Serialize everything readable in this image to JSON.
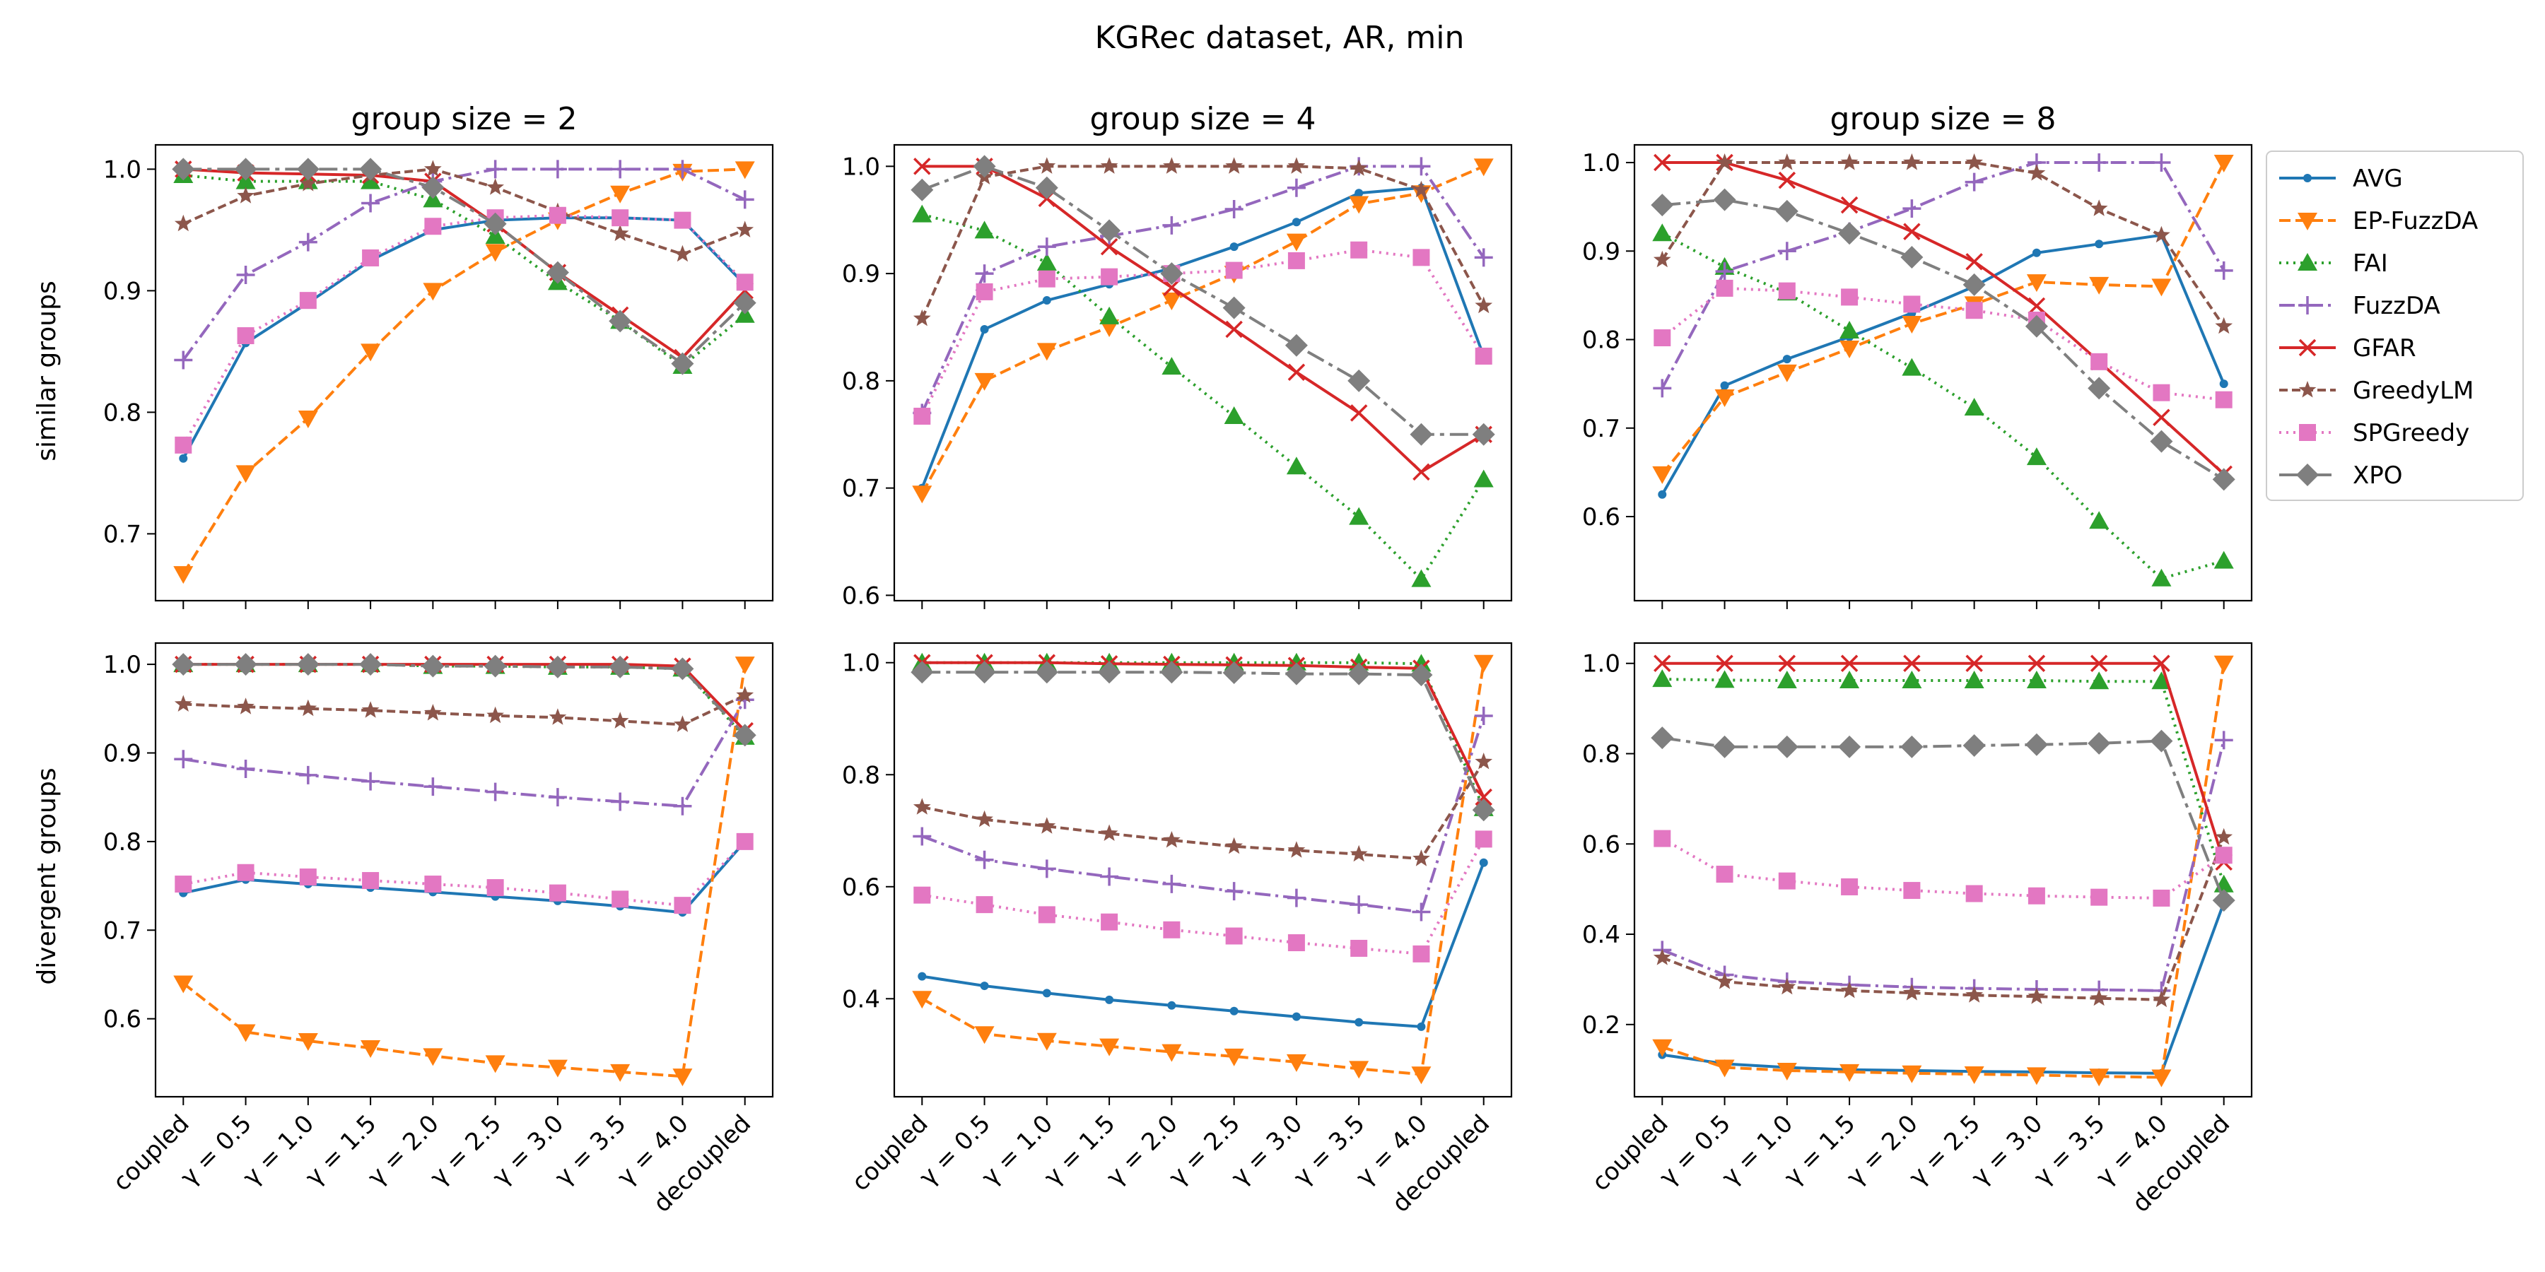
{
  "figure_title": "KGRec dataset, AR, min",
  "row_labels": [
    "similar groups",
    "divergent groups"
  ],
  "colors": {
    "AVG": "#1f77b4",
    "EP-FuzzDA": "#ff7f0e",
    "FAI": "#2ca02c",
    "FuzzDA": "#9467bd",
    "GFAR": "#d62728",
    "GreedyLM": "#8c564b",
    "SPGreedy": "#e377c2",
    "XPO": "#7f7f7f"
  },
  "legend": [
    "AVG",
    "EP-FuzzDA",
    "FAI",
    "FuzzDA",
    "GFAR",
    "GreedyLM",
    "SPGreedy",
    "XPO"
  ],
  "chart_data": [
    {
      "type": "line",
      "title": "group size = 2",
      "ylabel": "similar groups",
      "categories": [
        "coupled",
        "γ = 0.5",
        "γ = 1.0",
        "γ = 1.5",
        "γ = 2.0",
        "γ = 2.5",
        "γ = 3.0",
        "γ = 3.5",
        "γ = 4.0",
        "decoupled"
      ],
      "ylim": [
        0.645,
        1.02
      ],
      "yticks": [
        0.7,
        0.8,
        0.9,
        1.0
      ],
      "ytick_labels": [
        "0.7",
        "0.8",
        "0.9",
        "1.0"
      ],
      "series": [
        {
          "name": "AVG",
          "values": [
            0.762,
            0.857,
            0.89,
            0.925,
            0.95,
            0.958,
            0.96,
            0.96,
            0.958,
            0.905
          ]
        },
        {
          "name": "EP-FuzzDA",
          "values": [
            0.667,
            0.75,
            0.795,
            0.85,
            0.9,
            0.932,
            0.958,
            0.98,
            0.998,
            1.0
          ]
        },
        {
          "name": "FAI",
          "values": [
            0.995,
            0.99,
            0.99,
            0.99,
            0.975,
            0.945,
            0.907,
            0.875,
            0.838,
            0.88
          ]
        },
        {
          "name": "FuzzDA",
          "values": [
            0.843,
            0.913,
            0.94,
            0.972,
            0.99,
            1.0,
            1.0,
            1.0,
            1.0,
            0.975
          ]
        },
        {
          "name": "GFAR",
          "values": [
            1.0,
            0.997,
            0.996,
            0.995,
            0.99,
            0.955,
            0.915,
            0.88,
            0.845,
            0.9
          ]
        },
        {
          "name": "GreedyLM",
          "values": [
            0.955,
            0.978,
            0.988,
            0.995,
            1.0,
            0.985,
            0.965,
            0.947,
            0.93,
            0.95
          ]
        },
        {
          "name": "SPGreedy",
          "values": [
            0.773,
            0.863,
            0.892,
            0.927,
            0.953,
            0.96,
            0.962,
            0.96,
            0.958,
            0.907
          ]
        },
        {
          "name": "XPO",
          "values": [
            1.0,
            1.0,
            1.0,
            1.0,
            0.985,
            0.955,
            0.915,
            0.875,
            0.84,
            0.89
          ]
        }
      ]
    },
    {
      "type": "line",
      "title": "group size = 4",
      "ylabel": "",
      "categories": [
        "coupled",
        "γ = 0.5",
        "γ = 1.0",
        "γ = 1.5",
        "γ = 2.0",
        "γ = 2.5",
        "γ = 3.0",
        "γ = 3.5",
        "γ = 4.0",
        "decoupled"
      ],
      "ylim": [
        0.595,
        1.02
      ],
      "yticks": [
        0.6,
        0.7,
        0.8,
        0.9,
        1.0
      ],
      "ytick_labels": [
        "0.6",
        "0.7",
        "0.8",
        "0.9",
        "1.0"
      ],
      "series": [
        {
          "name": "AVG",
          "values": [
            0.7,
            0.848,
            0.875,
            0.89,
            0.905,
            0.925,
            0.948,
            0.975,
            0.98,
            0.823
          ]
        },
        {
          "name": "EP-FuzzDA",
          "values": [
            0.695,
            0.8,
            0.828,
            0.85,
            0.875,
            0.9,
            0.93,
            0.965,
            0.975,
            1.0
          ]
        },
        {
          "name": "FAI",
          "values": [
            0.955,
            0.94,
            0.91,
            0.86,
            0.813,
            0.767,
            0.72,
            0.673,
            0.615,
            0.708
          ]
        },
        {
          "name": "FuzzDA",
          "values": [
            0.77,
            0.9,
            0.925,
            0.935,
            0.945,
            0.96,
            0.98,
            1.0,
            1.0,
            0.915
          ]
        },
        {
          "name": "GFAR",
          "values": [
            1.0,
            1.0,
            0.97,
            0.925,
            0.887,
            0.848,
            0.808,
            0.77,
            0.715,
            0.75
          ]
        },
        {
          "name": "GreedyLM",
          "values": [
            0.858,
            0.99,
            1.0,
            1.0,
            1.0,
            1.0,
            1.0,
            0.998,
            0.978,
            0.87
          ]
        },
        {
          "name": "SPGreedy",
          "values": [
            0.767,
            0.883,
            0.895,
            0.897,
            0.9,
            0.903,
            0.912,
            0.922,
            0.915,
            0.823
          ]
        },
        {
          "name": "XPO",
          "values": [
            0.978,
            1.0,
            0.98,
            0.94,
            0.9,
            0.868,
            0.833,
            0.8,
            0.75,
            0.75
          ]
        }
      ]
    },
    {
      "type": "line",
      "title": "group size = 8",
      "ylabel": "",
      "categories": [
        "coupled",
        "γ = 0.5",
        "γ = 1.0",
        "γ = 1.5",
        "γ = 2.0",
        "γ = 2.5",
        "γ = 3.0",
        "γ = 3.5",
        "γ = 4.0",
        "decoupled"
      ],
      "ylim": [
        0.505,
        1.02
      ],
      "yticks": [
        0.6,
        0.7,
        0.8,
        0.9,
        1.0
      ],
      "ytick_labels": [
        "0.6",
        "0.7",
        "0.8",
        "0.9",
        "1.0"
      ],
      "series": [
        {
          "name": "AVG",
          "values": [
            0.625,
            0.748,
            0.778,
            0.803,
            0.83,
            0.86,
            0.898,
            0.908,
            0.918,
            0.75
          ]
        },
        {
          "name": "EP-FuzzDA",
          "values": [
            0.648,
            0.735,
            0.763,
            0.79,
            0.818,
            0.84,
            0.865,
            0.862,
            0.86,
            1.0
          ]
        },
        {
          "name": "FAI",
          "values": [
            0.92,
            0.882,
            0.853,
            0.81,
            0.768,
            0.723,
            0.667,
            0.595,
            0.53,
            0.55
          ]
        },
        {
          "name": "FuzzDA",
          "values": [
            0.745,
            0.877,
            0.9,
            0.922,
            0.948,
            0.978,
            1.0,
            1.0,
            1.0,
            0.878
          ]
        },
        {
          "name": "GFAR",
          "values": [
            1.0,
            1.0,
            0.98,
            0.952,
            0.922,
            0.888,
            0.838,
            0.775,
            0.712,
            0.648
          ]
        },
        {
          "name": "GreedyLM",
          "values": [
            0.89,
            1.0,
            1.0,
            1.0,
            1.0,
            1.0,
            0.988,
            0.948,
            0.918,
            0.815
          ]
        },
        {
          "name": "SPGreedy",
          "values": [
            0.802,
            0.858,
            0.855,
            0.848,
            0.84,
            0.833,
            0.822,
            0.775,
            0.74,
            0.732
          ]
        },
        {
          "name": "XPO",
          "values": [
            0.952,
            0.958,
            0.945,
            0.92,
            0.893,
            0.862,
            0.815,
            0.745,
            0.685,
            0.642
          ]
        }
      ]
    },
    {
      "type": "line",
      "title": "",
      "ylabel": "divergent groups",
      "categories": [
        "coupled",
        "γ = 0.5",
        "γ = 1.0",
        "γ = 1.5",
        "γ = 2.0",
        "γ = 2.5",
        "γ = 3.0",
        "γ = 3.5",
        "γ = 4.0",
        "decoupled"
      ],
      "ylim": [
        0.512,
        1.024
      ],
      "yticks": [
        0.6,
        0.7,
        0.8,
        0.9,
        1.0
      ],
      "ytick_labels": [
        "0.6",
        "0.7",
        "0.8",
        "0.9",
        "1.0"
      ],
      "series": [
        {
          "name": "AVG",
          "values": [
            0.742,
            0.757,
            0.752,
            0.748,
            0.743,
            0.738,
            0.733,
            0.727,
            0.72,
            0.8
          ]
        },
        {
          "name": "EP-FuzzDA",
          "values": [
            0.64,
            0.585,
            0.575,
            0.567,
            0.558,
            0.55,
            0.545,
            0.54,
            0.535,
            1.0
          ]
        },
        {
          "name": "FAI",
          "values": [
            1.0,
            1.0,
            1.0,
            1.0,
            0.998,
            0.998,
            0.997,
            0.997,
            0.995,
            0.918
          ]
        },
        {
          "name": "FuzzDA",
          "values": [
            0.893,
            0.882,
            0.875,
            0.868,
            0.862,
            0.856,
            0.85,
            0.845,
            0.84,
            0.96
          ]
        },
        {
          "name": "GFAR",
          "values": [
            1.0,
            1.0,
            1.0,
            1.0,
            1.0,
            1.0,
            1.0,
            1.0,
            0.998,
            0.925
          ]
        },
        {
          "name": "GreedyLM",
          "values": [
            0.955,
            0.952,
            0.95,
            0.948,
            0.945,
            0.942,
            0.94,
            0.936,
            0.932,
            0.965
          ]
        },
        {
          "name": "SPGreedy",
          "values": [
            0.752,
            0.765,
            0.76,
            0.756,
            0.752,
            0.748,
            0.742,
            0.735,
            0.728,
            0.8
          ]
        },
        {
          "name": "XPO",
          "values": [
            1.0,
            1.0,
            1.0,
            1.0,
            0.998,
            0.998,
            0.997,
            0.997,
            0.995,
            0.92
          ]
        }
      ]
    },
    {
      "type": "line",
      "title": "",
      "ylabel": "",
      "categories": [
        "coupled",
        "γ = 0.5",
        "γ = 1.0",
        "γ = 1.5",
        "γ = 2.0",
        "γ = 2.5",
        "γ = 3.0",
        "γ = 3.5",
        "γ = 4.0",
        "decoupled"
      ],
      "ylim": [
        0.225,
        1.035
      ],
      "yticks": [
        0.4,
        0.6,
        0.8,
        1.0
      ],
      "ytick_labels": [
        "0.4",
        "0.6",
        "0.8",
        "1.0"
      ],
      "series": [
        {
          "name": "AVG",
          "values": [
            0.44,
            0.423,
            0.41,
            0.398,
            0.388,
            0.378,
            0.368,
            0.358,
            0.35,
            0.643
          ]
        },
        {
          "name": "EP-FuzzDA",
          "values": [
            0.4,
            0.337,
            0.325,
            0.315,
            0.305,
            0.297,
            0.287,
            0.275,
            0.265,
            1.0
          ]
        },
        {
          "name": "FAI",
          "values": [
            1.0,
            1.0,
            1.0,
            1.0,
            1.0,
            1.0,
            1.0,
            1.0,
            0.998,
            0.74
          ]
        },
        {
          "name": "FuzzDA",
          "values": [
            0.69,
            0.648,
            0.632,
            0.618,
            0.605,
            0.592,
            0.58,
            0.568,
            0.555,
            0.905
          ]
        },
        {
          "name": "GFAR",
          "values": [
            1.0,
            1.0,
            1.0,
            0.998,
            0.997,
            0.996,
            0.995,
            0.992,
            0.99,
            0.76
          ]
        },
        {
          "name": "GreedyLM",
          "values": [
            0.742,
            0.72,
            0.708,
            0.695,
            0.683,
            0.672,
            0.665,
            0.658,
            0.65,
            0.823
          ]
        },
        {
          "name": "SPGreedy",
          "values": [
            0.585,
            0.568,
            0.55,
            0.537,
            0.523,
            0.512,
            0.5,
            0.49,
            0.48,
            0.685
          ]
        },
        {
          "name": "XPO",
          "values": [
            0.983,
            0.983,
            0.983,
            0.983,
            0.983,
            0.982,
            0.98,
            0.98,
            0.978,
            0.737
          ]
        }
      ]
    },
    {
      "type": "line",
      "title": "",
      "ylabel": "",
      "categories": [
        "coupled",
        "γ = 0.5",
        "γ = 1.0",
        "γ = 1.5",
        "γ = 2.0",
        "γ = 2.5",
        "γ = 3.0",
        "γ = 3.5",
        "γ = 4.0",
        "decoupled"
      ],
      "ylim": [
        0.04,
        1.045
      ],
      "yticks": [
        0.2,
        0.4,
        0.6,
        0.8,
        1.0
      ],
      "ytick_labels": [
        "0.2",
        "0.4",
        "0.6",
        "0.8",
        "1.0"
      ],
      "series": [
        {
          "name": "AVG",
          "values": [
            0.133,
            0.113,
            0.105,
            0.1,
            0.098,
            0.096,
            0.095,
            0.093,
            0.092,
            0.47
          ]
        },
        {
          "name": "EP-FuzzDA",
          "values": [
            0.15,
            0.105,
            0.098,
            0.095,
            0.092,
            0.09,
            0.088,
            0.085,
            0.083,
            1.0
          ]
        },
        {
          "name": "FAI",
          "values": [
            0.965,
            0.963,
            0.962,
            0.962,
            0.962,
            0.962,
            0.962,
            0.96,
            0.96,
            0.51
          ]
        },
        {
          "name": "FuzzDA",
          "values": [
            0.365,
            0.31,
            0.295,
            0.288,
            0.283,
            0.28,
            0.278,
            0.277,
            0.275,
            0.83
          ]
        },
        {
          "name": "GFAR",
          "values": [
            1.0,
            1.0,
            1.0,
            1.0,
            1.0,
            1.0,
            1.0,
            1.0,
            1.0,
            0.56
          ]
        },
        {
          "name": "GreedyLM",
          "values": [
            0.348,
            0.295,
            0.283,
            0.275,
            0.27,
            0.265,
            0.262,
            0.258,
            0.255,
            0.615
          ]
        },
        {
          "name": "SPGreedy",
          "values": [
            0.612,
            0.533,
            0.518,
            0.505,
            0.497,
            0.49,
            0.485,
            0.482,
            0.48,
            0.575
          ]
        },
        {
          "name": "XPO",
          "values": [
            0.835,
            0.815,
            0.815,
            0.815,
            0.815,
            0.818,
            0.82,
            0.823,
            0.828,
            0.475
          ]
        }
      ]
    }
  ]
}
